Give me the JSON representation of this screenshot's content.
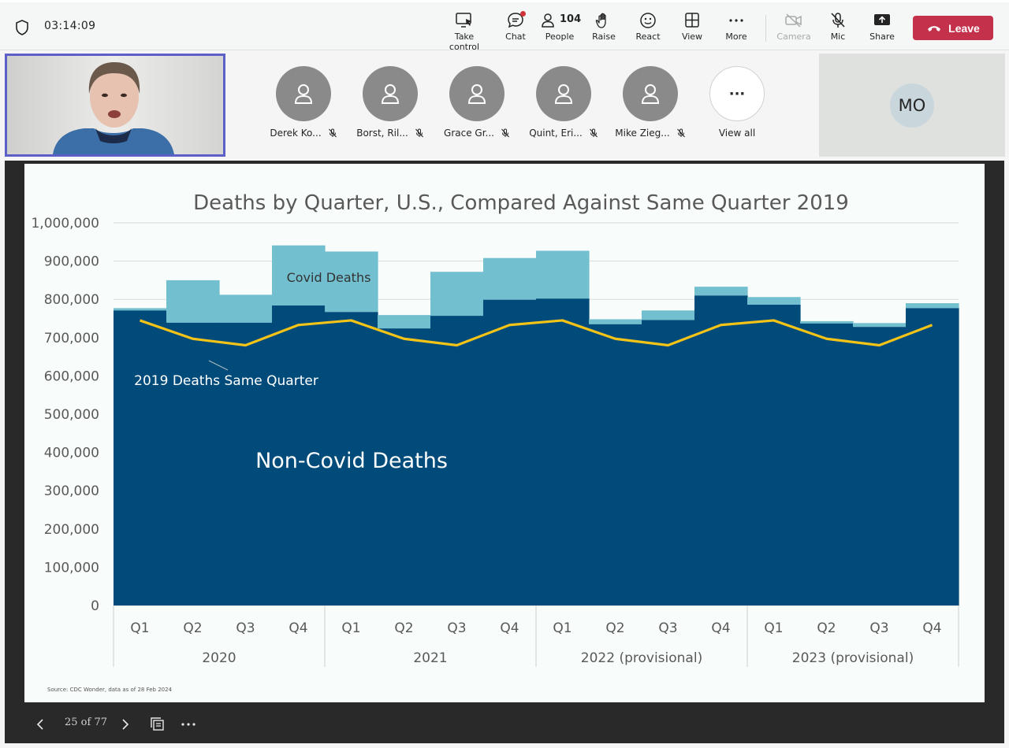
{
  "meeting": {
    "timer": "03:14:09",
    "toolbar": {
      "take_control": "Take control",
      "chat": "Chat",
      "people": "People",
      "people_count": "104",
      "raise": "Raise",
      "react": "React",
      "view": "View",
      "more": "More",
      "camera": "Camera",
      "mic": "Mic",
      "share": "Share",
      "leave": "Leave"
    },
    "participants": [
      {
        "name": "Derek Ko..."
      },
      {
        "name": "Borst, Ril..."
      },
      {
        "name": "Grace Gr..."
      },
      {
        "name": "Quint, Eri..."
      },
      {
        "name": "Mike Zieg..."
      }
    ],
    "view_all": "View all",
    "tile_initials": "MO",
    "pager": "25 of 77"
  },
  "colors": {
    "non_covid": "#004b7a",
    "covid": "#72bfcf",
    "line_2019": "#f3c318",
    "leave": "#c4314b",
    "accent": "#5b5fc7"
  },
  "chart_data": {
    "type": "area",
    "title": "Deaths by Quarter, U.S., Compared Against Same Quarter 2019",
    "ylim": [
      0,
      1000000
    ],
    "yticks": [
      "0",
      "100,000",
      "200,000",
      "300,000",
      "400,000",
      "500,000",
      "600,000",
      "700,000",
      "800,000",
      "900,000",
      "1,000,000"
    ],
    "categories": [
      "Q1",
      "Q2",
      "Q3",
      "Q4",
      "Q1",
      "Q2",
      "Q3",
      "Q4",
      "Q1",
      "Q2",
      "Q3",
      "Q4",
      "Q1",
      "Q2",
      "Q3",
      "Q4"
    ],
    "groups": [
      "2020",
      "2021",
      "2022 (provisional)",
      "2023 (provisional)"
    ],
    "series": [
      {
        "name": "Non-Covid Deaths",
        "values": [
          771000,
          739000,
          739000,
          784000,
          767000,
          724000,
          757000,
          799000,
          802000,
          735000,
          746000,
          810000,
          786000,
          737000,
          728000,
          777000
        ]
      },
      {
        "name": "Covid Deaths",
        "values": [
          6000,
          111000,
          73000,
          157000,
          158000,
          35000,
          115000,
          109000,
          125000,
          13000,
          25000,
          23000,
          20000,
          6000,
          10000,
          13000
        ]
      },
      {
        "name": "2019 Deaths Same Quarter",
        "values": [
          745000,
          697000,
          680000,
          733000,
          745000,
          697000,
          680000,
          733000,
          745000,
          697000,
          680000,
          733000,
          745000,
          697000,
          680000,
          733000
        ]
      }
    ],
    "annotations": {
      "covid": "Covid Deaths",
      "line_2019": "2019 Deaths Same Quarter",
      "non_covid": "Non-Covid Deaths"
    },
    "source": "Source: CDC Wonder, data as of 28 Feb 2024"
  }
}
